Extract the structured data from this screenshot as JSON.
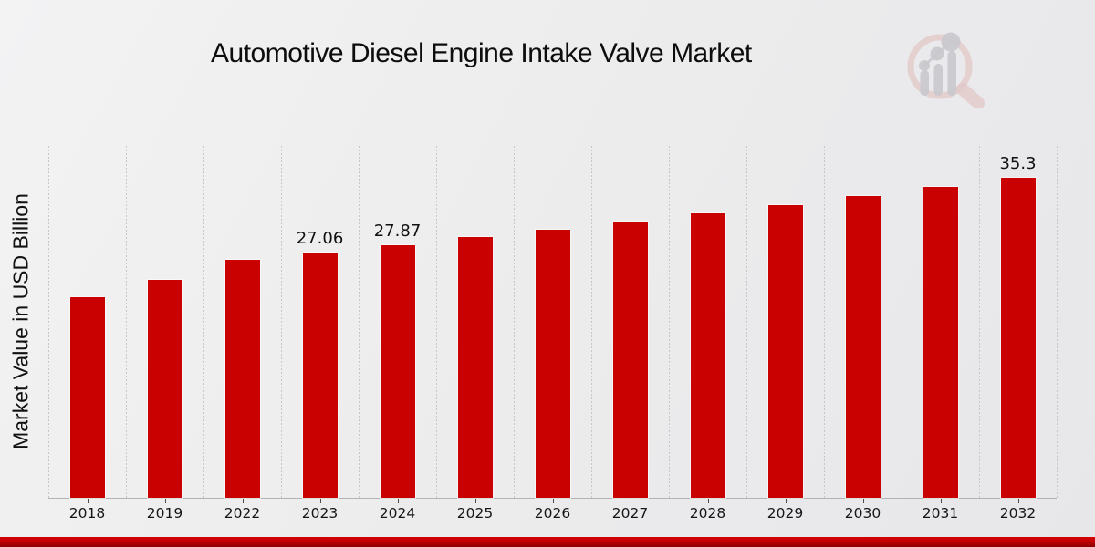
{
  "page": {
    "title": "Automotive Diesel Engine Intake Valve Market"
  },
  "chart_data": {
    "type": "bar",
    "title": "Automotive Diesel Engine Intake Valve Market",
    "xlabel": "",
    "ylabel": "Market Value in USD Billion",
    "categories": [
      "2018",
      "2019",
      "2022",
      "2023",
      "2024",
      "2025",
      "2026",
      "2027",
      "2028",
      "2029",
      "2030",
      "2031",
      "2032"
    ],
    "values": [
      22.15,
      24.05,
      26.27,
      27.06,
      27.87,
      28.71,
      29.57,
      30.46,
      31.37,
      32.31,
      33.28,
      34.28,
      35.3
    ],
    "value_labels": {
      "2023": "27.06",
      "2024": "27.87",
      "2032": "35.3"
    },
    "ylim": [
      0,
      38.8
    ],
    "y_ticks_shown": false,
    "grid": "vertical-dotted-column-separators",
    "legend_position": "none",
    "bar_color": "#c90101",
    "units": "USD Billion"
  },
  "watermark": {
    "name": "market-research-chart-magnifier-logo",
    "ring_color": "#dcb6b6",
    "bars_color": "#c3c3c8"
  },
  "footer": {
    "band_color_top": "#d60101",
    "band_color_bottom": "#8c0000"
  }
}
